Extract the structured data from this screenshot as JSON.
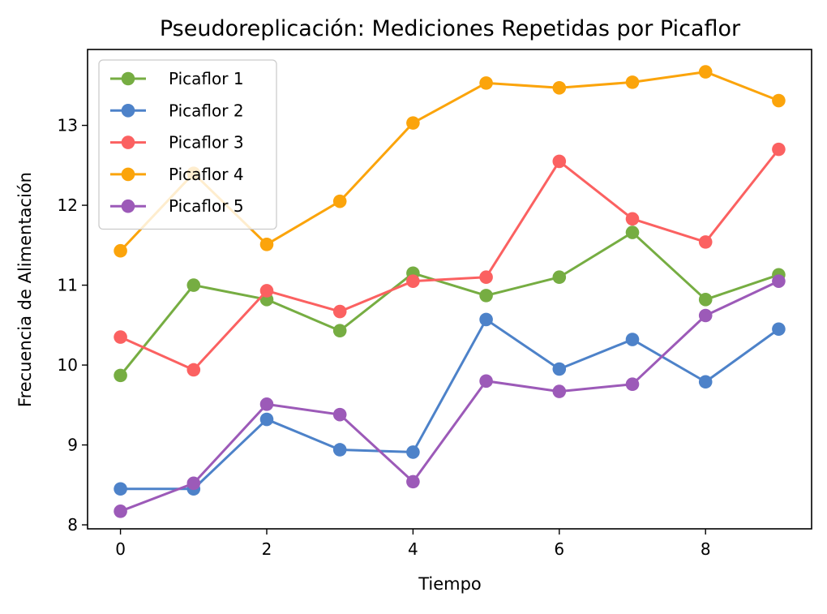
{
  "chart_data": {
    "type": "line",
    "title": "Pseudoreplicación: Mediciones Repetidas por Picaflor",
    "xlabel": "Tiempo",
    "ylabel": "Frecuencia de Alimentación",
    "xlim": [
      -0.45,
      9.45
    ],
    "ylim": [
      7.95,
      13.95
    ],
    "x_ticks": [
      0,
      2,
      4,
      6,
      8
    ],
    "y_ticks": [
      8,
      9,
      10,
      11,
      12,
      13
    ],
    "grid": false,
    "legend_position": "top-left",
    "x": [
      0,
      1,
      2,
      3,
      4,
      5,
      6,
      7,
      8,
      9
    ],
    "series": [
      {
        "name": "Picaflor 1",
        "color": "#76ad42",
        "values": [
          9.87,
          11.0,
          10.82,
          10.43,
          11.15,
          10.87,
          11.1,
          11.66,
          10.82,
          11.13
        ]
      },
      {
        "name": "Picaflor 2",
        "color": "#4d82c9",
        "values": [
          8.45,
          8.45,
          9.32,
          8.94,
          8.91,
          10.57,
          9.95,
          10.32,
          9.79,
          10.45
        ]
      },
      {
        "name": "Picaflor 3",
        "color": "#fb6161",
        "values": [
          10.35,
          9.94,
          10.93,
          10.67,
          11.05,
          11.1,
          12.55,
          11.83,
          11.54,
          12.7
        ]
      },
      {
        "name": "Picaflor 4",
        "color": "#fba40b",
        "values": [
          11.43,
          12.4,
          11.51,
          12.05,
          13.03,
          13.53,
          13.47,
          13.54,
          13.67,
          13.31
        ]
      },
      {
        "name": "Picaflor 5",
        "color": "#9c5ab8",
        "values": [
          8.17,
          8.52,
          9.51,
          9.38,
          8.54,
          9.8,
          9.67,
          9.76,
          10.62,
          11.05
        ]
      }
    ]
  }
}
